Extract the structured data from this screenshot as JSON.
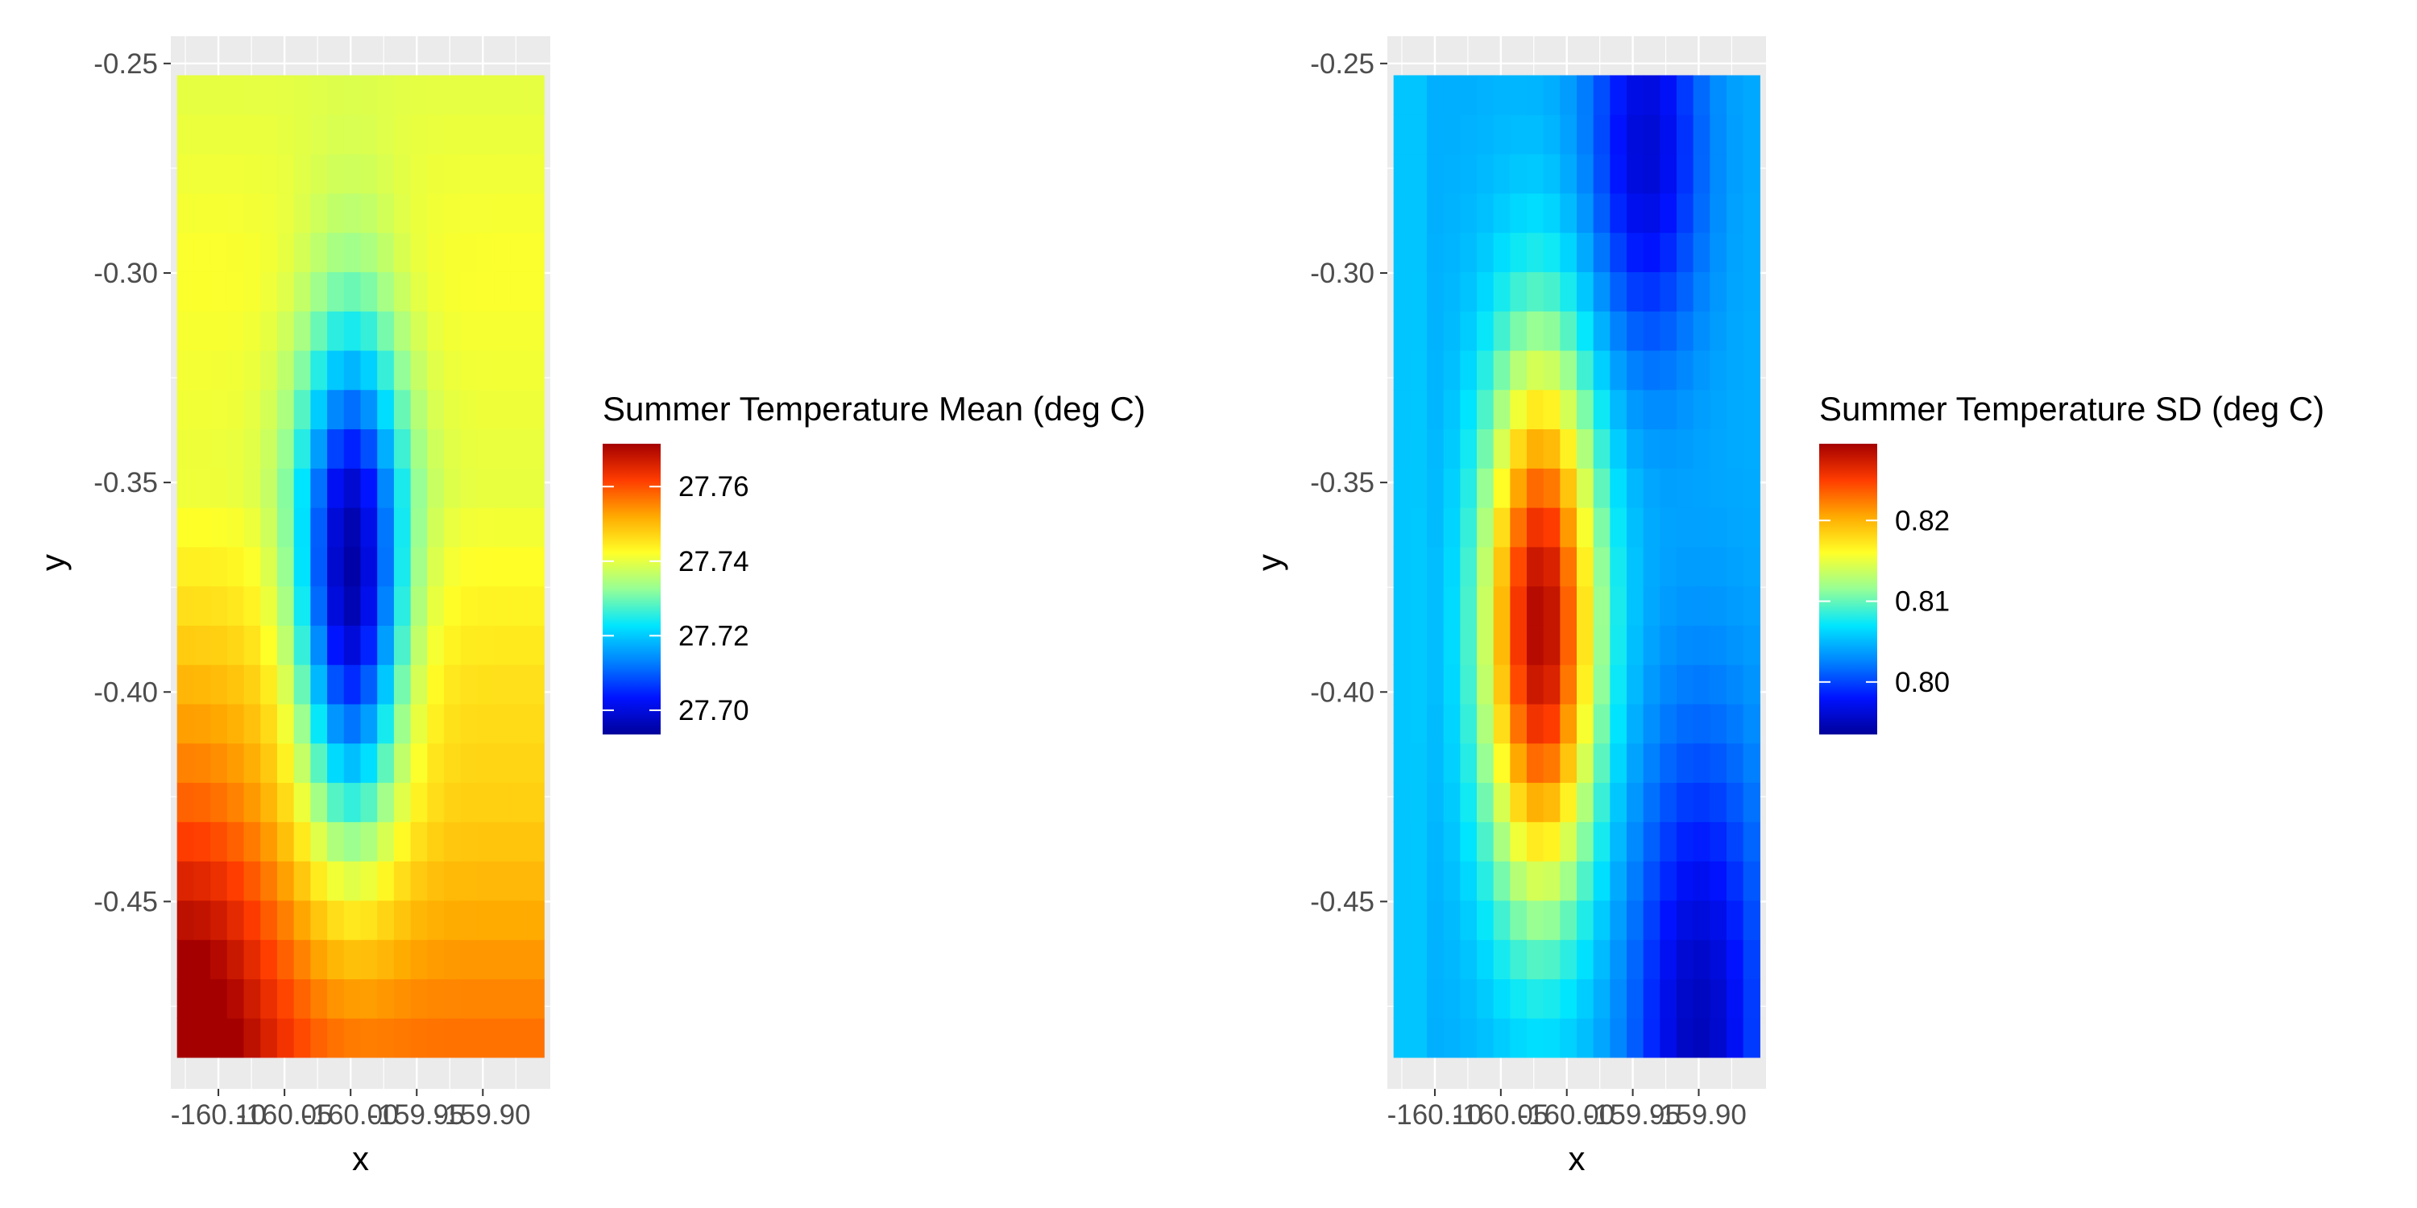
{
  "chart_data": [
    {
      "type": "heatmap",
      "title": "",
      "xlabel": "x",
      "ylabel": "y",
      "x_ticks": [
        "-160.10",
        "-160.05",
        "-160.00",
        "-159.95",
        "-159.90"
      ],
      "y_ticks": [
        "-0.25",
        "-0.30",
        "-0.35",
        "-0.40",
        "-0.45"
      ],
      "xlim": [
        -160.136,
        -159.849
      ],
      "ylim": [
        -0.4947,
        -0.2435
      ],
      "grid": true,
      "x_range": [
        -160.125,
        -159.86
      ],
      "y_range": [
        -0.4825,
        -0.2575
      ],
      "n_cols": 22,
      "n_rows": 25,
      "legend": {
        "title": "Summer Temperature Mean (deg C)",
        "labels": [
          "27.76",
          "27.74",
          "27.72",
          "27.70"
        ],
        "values": [
          27.76,
          27.74,
          27.72,
          27.7
        ],
        "min": 27.6935,
        "max": 27.7715,
        "position": "right"
      },
      "surface": {
        "base": 27.745,
        "rows": [
          {
            "y": -0.4825,
            "v": 27.757
          },
          {
            "y": -0.455,
            "v": 27.752
          },
          {
            "y": -0.43,
            "v": 27.748
          },
          {
            "y": -0.4,
            "v": 27.746
          },
          {
            "y": -0.35,
            "v": 27.74
          },
          {
            "y": -0.3,
            "v": 27.742
          },
          {
            "y": -0.2575,
            "v": 27.74
          }
        ],
        "cold_spot": {
          "x": -160.0,
          "y": -0.374,
          "depth": -0.048
        },
        "warm_corner": {
          "x": -160.125,
          "y": -0.4825,
          "delta": 0.02
        }
      }
    },
    {
      "type": "heatmap",
      "title": "",
      "xlabel": "x",
      "ylabel": "y",
      "x_ticks": [
        "-160.10",
        "-160.05",
        "-160.00",
        "-159.95",
        "-159.90"
      ],
      "y_ticks": [
        "-0.25",
        "-0.30",
        "-0.35",
        "-0.40",
        "-0.45"
      ],
      "xlim": [
        -160.136,
        -159.849
      ],
      "ylim": [
        -0.4947,
        -0.2435
      ],
      "grid": true,
      "x_range": [
        -160.125,
        -159.86
      ],
      "y_range": [
        -0.4825,
        -0.2575
      ],
      "n_cols": 22,
      "n_rows": 25,
      "legend": {
        "title": "Summer Temperature SD (deg C)",
        "labels": [
          "0.82",
          "0.81",
          "0.80"
        ],
        "values": [
          0.82,
          0.81,
          0.8
        ],
        "min": 0.7935,
        "max": 0.8295,
        "position": "right"
      },
      "surface": {
        "base": 0.8045,
        "west_strip": 0.8055,
        "hot_spot": {
          "x": -160.02,
          "y": -0.384,
          "peak": 0.0245
        },
        "cold_ne": {
          "x": -159.94,
          "y": -0.27,
          "delta": -0.0085
        },
        "cold_se": {
          "x": -159.9,
          "y": -0.4825,
          "delta": -0.0095
        }
      }
    }
  ]
}
